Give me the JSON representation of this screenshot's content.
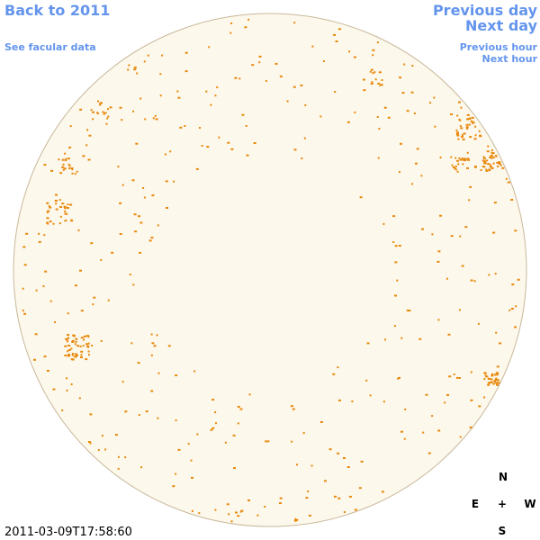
{
  "navigation": {
    "back": "Back to 2011",
    "facular_data": "See facular data",
    "previous_day": "Previous day",
    "next_day": "Next day",
    "previous_hour": "Previous hour",
    "next_hour": "Next hour"
  },
  "timestamp": "2011-03-09T17:58:60",
  "compass": {
    "north": "N",
    "east": "E",
    "center": "+",
    "west": "W",
    "south": "S"
  }
}
